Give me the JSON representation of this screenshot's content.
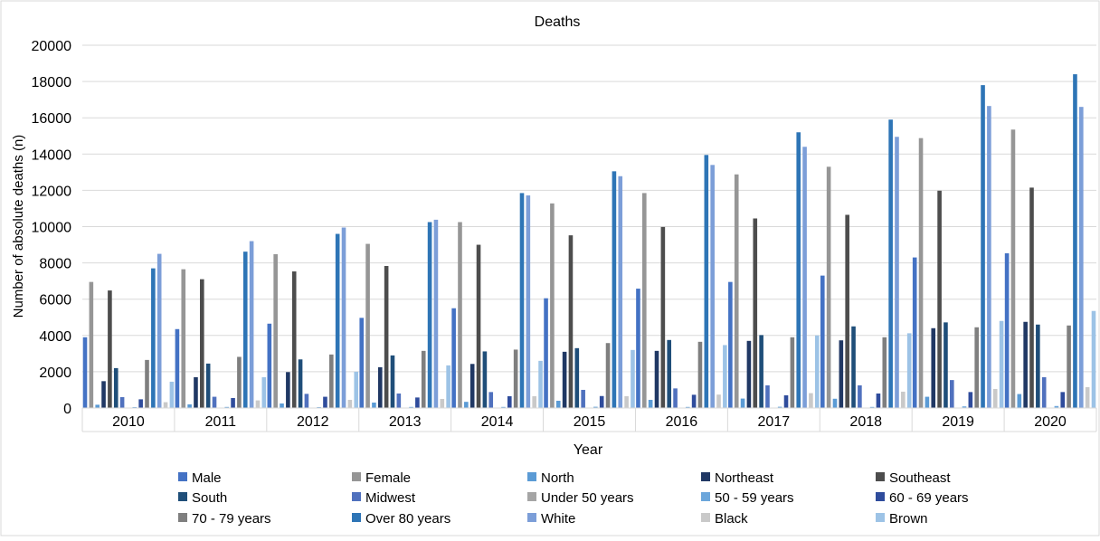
{
  "chart_data": {
    "type": "bar",
    "title": "Deaths",
    "xlabel": "Year",
    "ylabel": "Number of absolute deaths (n)",
    "ylim": [
      0,
      20000
    ],
    "yticks": [
      0,
      2000,
      4000,
      6000,
      8000,
      10000,
      12000,
      14000,
      16000,
      18000,
      20000
    ],
    "grid": true,
    "legend_position": "bottom",
    "categories": [
      "2010",
      "2011",
      "2012",
      "2013",
      "2014",
      "2015",
      "2016",
      "2017",
      "2018",
      "2019",
      "2020"
    ],
    "series": [
      {
        "name": "Male",
        "color": "#4472c4",
        "values": [
          3900,
          4350,
          4650,
          4970,
          5500,
          6050,
          6580,
          6950,
          7300,
          8300,
          8530
        ]
      },
      {
        "name": "Female",
        "color": "#969696",
        "values": [
          6950,
          7650,
          8480,
          9050,
          10250,
          11280,
          11850,
          12880,
          13300,
          14880,
          15350
        ]
      },
      {
        "name": "North",
        "color": "#5b9bd5",
        "values": [
          180,
          200,
          250,
          300,
          340,
          400,
          450,
          520,
          510,
          620,
          770
        ]
      },
      {
        "name": "Northeast",
        "color": "#203864",
        "values": [
          1480,
          1700,
          1980,
          2250,
          2430,
          3100,
          3150,
          3700,
          3730,
          4400,
          4750
        ]
      },
      {
        "name": "Southeast",
        "color": "#4d4d4d",
        "values": [
          6480,
          7100,
          7530,
          7830,
          9000,
          9520,
          9980,
          10450,
          10650,
          11980,
          12150
        ]
      },
      {
        "name": "South",
        "color": "#1f4e79",
        "values": [
          2200,
          2450,
          2680,
          2900,
          3120,
          3300,
          3750,
          4020,
          4500,
          4720,
          4600
        ]
      },
      {
        "name": "Midwest",
        "color": "#5071be",
        "values": [
          600,
          620,
          780,
          800,
          880,
          1000,
          1080,
          1250,
          1250,
          1540,
          1700
        ]
      },
      {
        "name": "Under 50 years",
        "color": "#a5a5a5",
        "values": [
          0,
          0,
          0,
          0,
          0,
          0,
          0,
          0,
          0,
          0,
          0
        ]
      },
      {
        "name": "50 - 59 years",
        "color": "#6ca6db",
        "values": [
          50,
          60,
          50,
          60,
          60,
          70,
          60,
          70,
          60,
          90,
          110
        ]
      },
      {
        "name": "60 - 69 years",
        "color": "#2f4c9c",
        "values": [
          480,
          550,
          620,
          580,
          650,
          660,
          730,
          700,
          800,
          880,
          880
        ]
      },
      {
        "name": "70 - 79 years",
        "color": "#7f7f7f",
        "values": [
          2650,
          2820,
          2950,
          3150,
          3220,
          3580,
          3650,
          3900,
          3900,
          4450,
          4550
        ]
      },
      {
        "name": "Over 80 years",
        "color": "#2e75b6",
        "values": [
          7700,
          8620,
          9600,
          10250,
          11850,
          13050,
          13950,
          15200,
          15900,
          17800,
          18400
        ]
      },
      {
        "name": "White",
        "color": "#7c9ed8",
        "values": [
          8500,
          9200,
          9950,
          10380,
          11720,
          12780,
          13400,
          14400,
          14950,
          16650,
          16600
        ]
      },
      {
        "name": "Black",
        "color": "#c9c9c9",
        "values": [
          320,
          420,
          450,
          500,
          650,
          650,
          740,
          820,
          900,
          1050,
          1150
        ]
      },
      {
        "name": "Brown",
        "color": "#9dc3e6",
        "values": [
          1450,
          1700,
          2000,
          2350,
          2600,
          3200,
          3470,
          4000,
          4120,
          4800,
          5350
        ]
      }
    ]
  }
}
